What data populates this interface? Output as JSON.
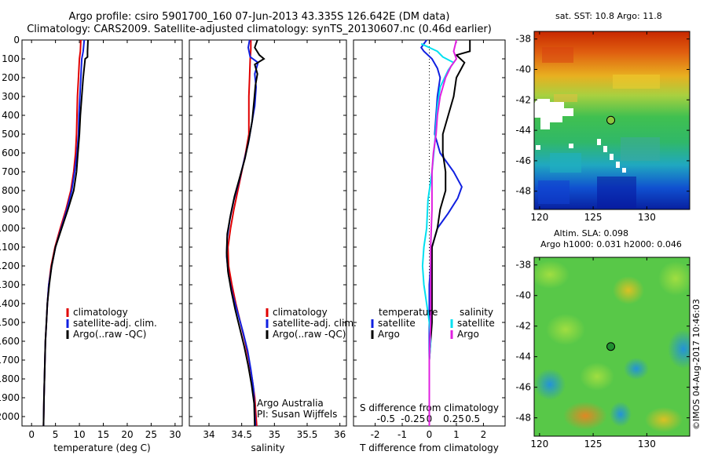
{
  "header": {
    "title_line1": "Argo profile: csiro 5901700_160 07-Jun-2013 43.335S 126.642E (DM data)",
    "title_line2": "Climatology: CARS2009. Satellite-adjusted climatology: synTS_20130607.nc (0.46d earlier)"
  },
  "depth_axis": {
    "ticks": [
      0,
      100,
      200,
      300,
      400,
      500,
      600,
      700,
      800,
      900,
      1000,
      1100,
      1200,
      1300,
      1400,
      1500,
      1600,
      1700,
      1800,
      1900,
      2000
    ],
    "range": [
      0,
      2050
    ],
    "inverted": true
  },
  "colors": {
    "climatology": "#e00000",
    "satellite": "#1020e0",
    "argo": "#000000",
    "sat_salinity": "#00e0f0",
    "argo_salinity": "#e020e0",
    "marker": "#208020"
  },
  "chart_data": [
    {
      "id": "temperature",
      "type": "line",
      "xlabel": "temperature (deg C)",
      "xlim": [
        -2,
        31.5
      ],
      "xticks": [
        0,
        5,
        10,
        15,
        20,
        25,
        30
      ],
      "legend": [
        "climatology",
        "satellite-adj. clim.",
        "Argo(..raw -QC)"
      ],
      "legend_position": "lower-left",
      "series": [
        {
          "name": "climatology",
          "color": "#e00000",
          "points": [
            [
              10.3,
              0
            ],
            [
              10.2,
              60
            ],
            [
              10.0,
              100
            ],
            [
              9.8,
              200
            ],
            [
              9.6,
              300
            ],
            [
              9.5,
              400
            ],
            [
              9.4,
              500
            ],
            [
              9.2,
              600
            ],
            [
              8.8,
              700
            ],
            [
              8.2,
              800
            ],
            [
              7.2,
              900
            ],
            [
              6.0,
              1000
            ],
            [
              4.9,
              1100
            ],
            [
              4.1,
              1200
            ],
            [
              3.6,
              1300
            ],
            [
              3.3,
              1400
            ],
            [
              3.1,
              1500
            ],
            [
              2.9,
              1600
            ],
            [
              2.8,
              1700
            ],
            [
              2.7,
              1800
            ],
            [
              2.6,
              1900
            ],
            [
              2.5,
              2050
            ]
          ]
        },
        {
          "name": "satellite-adj. clim.",
          "color": "#1020e0",
          "points": [
            [
              11.0,
              0
            ],
            [
              10.8,
              60
            ],
            [
              10.5,
              100
            ],
            [
              10.3,
              200
            ],
            [
              10.1,
              300
            ],
            [
              9.9,
              400
            ],
            [
              9.8,
              500
            ],
            [
              9.5,
              600
            ],
            [
              9.0,
              700
            ],
            [
              8.4,
              800
            ],
            [
              7.4,
              900
            ],
            [
              6.2,
              1000
            ],
            [
              5.0,
              1100
            ],
            [
              4.2,
              1200
            ],
            [
              3.6,
              1300
            ],
            [
              3.3,
              1400
            ],
            [
              3.1,
              1500
            ],
            [
              2.9,
              1600
            ],
            [
              2.8,
              1700
            ],
            [
              2.7,
              1800
            ],
            [
              2.6,
              1900
            ],
            [
              2.5,
              2050
            ]
          ]
        },
        {
          "name": "Argo(..raw -QC)",
          "color": "#000000",
          "points": [
            [
              11.8,
              0
            ],
            [
              11.7,
              60
            ],
            [
              11.7,
              90
            ],
            [
              11.2,
              100
            ],
            [
              10.8,
              200
            ],
            [
              10.5,
              300
            ],
            [
              10.2,
              400
            ],
            [
              10.0,
              500
            ],
            [
              9.7,
              600
            ],
            [
              9.4,
              700
            ],
            [
              8.8,
              800
            ],
            [
              7.6,
              900
            ],
            [
              6.3,
              1000
            ],
            [
              5.0,
              1100
            ],
            [
              4.2,
              1200
            ],
            [
              3.7,
              1300
            ],
            [
              3.3,
              1400
            ],
            [
              3.1,
              1500
            ],
            [
              2.9,
              1600
            ],
            [
              2.8,
              1700
            ],
            [
              2.7,
              1800
            ],
            [
              2.6,
              1900
            ],
            [
              2.5,
              2050
            ]
          ]
        }
      ]
    },
    {
      "id": "salinity",
      "type": "line",
      "xlabel": "salinity",
      "xlim": [
        33.7,
        36.1
      ],
      "xticks": [
        34,
        34.5,
        35,
        35.5,
        36
      ],
      "legend": [
        "climatology",
        "satellite-adj. clim.",
        "Argo(..raw -QC)"
      ],
      "legend_position": "lower-right",
      "annotation": [
        "Argo Australia",
        "PI: Susan Wijffels"
      ],
      "series": [
        {
          "name": "climatology",
          "color": "#e00000",
          "points": [
            [
              34.64,
              0
            ],
            [
              34.64,
              50
            ],
            [
              34.63,
              100
            ],
            [
              34.62,
              200
            ],
            [
              34.61,
              300
            ],
            [
              34.61,
              400
            ],
            [
              34.61,
              500
            ],
            [
              34.56,
              600
            ],
            [
              34.5,
              700
            ],
            [
              34.44,
              800
            ],
            [
              34.38,
              900
            ],
            [
              34.33,
              1000
            ],
            [
              34.29,
              1100
            ],
            [
              34.3,
              1200
            ],
            [
              34.35,
              1300
            ],
            [
              34.41,
              1400
            ],
            [
              34.48,
              1500
            ],
            [
              34.55,
              1600
            ],
            [
              34.61,
              1700
            ],
            [
              34.66,
              1800
            ],
            [
              34.7,
              1900
            ],
            [
              34.73,
              2050
            ]
          ]
        },
        {
          "name": "satellite-adj. clim.",
          "color": "#1020e0",
          "points": [
            [
              34.62,
              0
            ],
            [
              34.6,
              40
            ],
            [
              34.63,
              90
            ],
            [
              34.75,
              120
            ],
            [
              34.7,
              180
            ],
            [
              34.72,
              250
            ],
            [
              34.7,
              350
            ],
            [
              34.65,
              450
            ],
            [
              34.6,
              550
            ],
            [
              34.53,
              650
            ],
            [
              34.46,
              750
            ],
            [
              34.38,
              850
            ],
            [
              34.32,
              950
            ],
            [
              34.28,
              1050
            ],
            [
              34.27,
              1150
            ],
            [
              34.3,
              1250
            ],
            [
              34.36,
              1350
            ],
            [
              34.44,
              1450
            ],
            [
              34.52,
              1550
            ],
            [
              34.59,
              1650
            ],
            [
              34.64,
              1750
            ],
            [
              34.68,
              1850
            ],
            [
              34.71,
              2050
            ]
          ]
        },
        {
          "name": "Argo(..raw -QC)",
          "color": "#000000",
          "points": [
            [
              34.74,
              0
            ],
            [
              34.7,
              40
            ],
            [
              34.77,
              80
            ],
            [
              34.84,
              100
            ],
            [
              34.7,
              130
            ],
            [
              34.74,
              180
            ],
            [
              34.71,
              240
            ],
            [
              34.69,
              320
            ],
            [
              34.66,
              430
            ],
            [
              34.61,
              530
            ],
            [
              34.55,
              630
            ],
            [
              34.47,
              730
            ],
            [
              34.39,
              830
            ],
            [
              34.33,
              930
            ],
            [
              34.28,
              1030
            ],
            [
              34.27,
              1130
            ],
            [
              34.29,
              1230
            ],
            [
              34.34,
              1330
            ],
            [
              34.4,
              1430
            ],
            [
              34.47,
              1530
            ],
            [
              34.54,
              1630
            ],
            [
              34.6,
              1730
            ],
            [
              34.65,
              1830
            ],
            [
              34.69,
              1930
            ],
            [
              34.7,
              2050
            ]
          ]
        }
      ]
    },
    {
      "id": "difference",
      "type": "line",
      "xlabel": "T difference from climatology",
      "xlim": [
        -2.8,
        2.8
      ],
      "xticks": [
        -2,
        -1,
        0,
        1,
        2
      ],
      "secondary_xlabel": "S difference from climatology",
      "secondary_xticks": [
        "-0.5",
        "-0.25",
        "0",
        "0.25",
        "0.5"
      ],
      "legend_left_title": "temperature",
      "legend_right_title": "salinity",
      "legend_left": [
        "satellite",
        "Argo"
      ],
      "legend_right": [
        "satellite",
        "Argo"
      ],
      "series": [
        {
          "name": "satellite",
          "variable": "temperature",
          "color": "#1020e0",
          "points": [
            [
              -0.1,
              0
            ],
            [
              -0.3,
              40
            ],
            [
              -0.2,
              60
            ],
            [
              0.1,
              100
            ],
            [
              0.3,
              150
            ],
            [
              0.4,
              200
            ],
            [
              0.3,
              300
            ],
            [
              0.25,
              400
            ],
            [
              0.2,
              500
            ],
            [
              0.4,
              600
            ],
            [
              0.9,
              700
            ],
            [
              1.2,
              780
            ],
            [
              1.05,
              840
            ],
            [
              0.7,
              920
            ],
            [
              0.3,
              1000
            ],
            [
              0.1,
              1100
            ],
            [
              0.05,
              1200
            ],
            [
              0.0,
              1300
            ],
            [
              0.0,
              1500
            ],
            [
              0.0,
              1700
            ],
            [
              0.0,
              1900
            ],
            [
              0.0,
              2050
            ]
          ]
        },
        {
          "name": "Argo",
          "variable": "temperature",
          "color": "#000000",
          "points": [
            [
              1.5,
              0
            ],
            [
              1.5,
              60
            ],
            [
              1.0,
              80
            ],
            [
              1.3,
              120
            ],
            [
              1.0,
              200
            ],
            [
              0.9,
              300
            ],
            [
              0.7,
              400
            ],
            [
              0.5,
              500
            ],
            [
              0.5,
              600
            ],
            [
              0.6,
              700
            ],
            [
              0.6,
              800
            ],
            [
              0.4,
              900
            ],
            [
              0.3,
              1000
            ],
            [
              0.1,
              1100
            ],
            [
              0.1,
              1300
            ],
            [
              0.1,
              1500
            ],
            [
              0.0,
              1700
            ],
            [
              0.0,
              1900
            ],
            [
              0.0,
              2050
            ]
          ]
        },
        {
          "name": "satellite",
          "variable": "salinity",
          "color": "#00e0f0",
          "points": [
            [
              -0.3,
              20
            ],
            [
              0.3,
              60
            ],
            [
              0.5,
              90
            ],
            [
              0.9,
              120
            ],
            [
              0.7,
              160
            ],
            [
              0.4,
              250
            ],
            [
              0.3,
              350
            ],
            [
              0.25,
              450
            ],
            [
              0.2,
              550
            ],
            [
              0.1,
              700
            ],
            [
              -0.05,
              850
            ],
            [
              -0.1,
              1000
            ],
            [
              -0.2,
              1100
            ],
            [
              -0.25,
              1200
            ],
            [
              -0.2,
              1300
            ],
            [
              -0.1,
              1400
            ],
            [
              0.0,
              1500
            ],
            [
              0.05,
              1600
            ],
            [
              0.0,
              1700
            ],
            [
              0.0,
              1900
            ],
            [
              0.0,
              2050
            ]
          ]
        },
        {
          "name": "Argo",
          "variable": "salinity",
          "color": "#e020e0",
          "points": [
            [
              1.0,
              0
            ],
            [
              0.9,
              60
            ],
            [
              1.0,
              100
            ],
            [
              0.8,
              140
            ],
            [
              0.6,
              200
            ],
            [
              0.4,
              300
            ],
            [
              0.3,
              400
            ],
            [
              0.25,
              500
            ],
            [
              0.15,
              600
            ],
            [
              0.1,
              700
            ],
            [
              0.1,
              900
            ],
            [
              0.05,
              1100
            ],
            [
              0.05,
              1300
            ],
            [
              0.05,
              1500
            ],
            [
              0.0,
              1700
            ],
            [
              0.0,
              1900
            ],
            [
              0.0,
              2050
            ]
          ]
        }
      ]
    },
    {
      "id": "sst_map",
      "type": "heatmap",
      "title": "sat. SST: 10.8 Argo: 11.8",
      "xlim": [
        119.5,
        134
      ],
      "ylim": [
        -49.2,
        -37.5
      ],
      "xticks": [
        120,
        125,
        130
      ],
      "yticks": [
        -38,
        -40,
        -42,
        -44,
        -46,
        -48
      ],
      "marker": {
        "lon": 126.642,
        "lat": -43.335
      }
    },
    {
      "id": "sla_map",
      "type": "heatmap",
      "title_line1": "Altim. SLA: 0.098",
      "title_line2": "Argo h1000: 0.031 h2000: 0.046",
      "xlim": [
        119.5,
        134
      ],
      "ylim": [
        -49.2,
        -37.5
      ],
      "xticks": [
        120,
        125,
        130
      ],
      "yticks": [
        -38,
        -40,
        -42,
        -44,
        -46,
        -48
      ],
      "marker": {
        "lon": 126.642,
        "lat": -43.335
      }
    }
  ],
  "stamp": "©IMOS 04-Aug-2017 10:46:03"
}
